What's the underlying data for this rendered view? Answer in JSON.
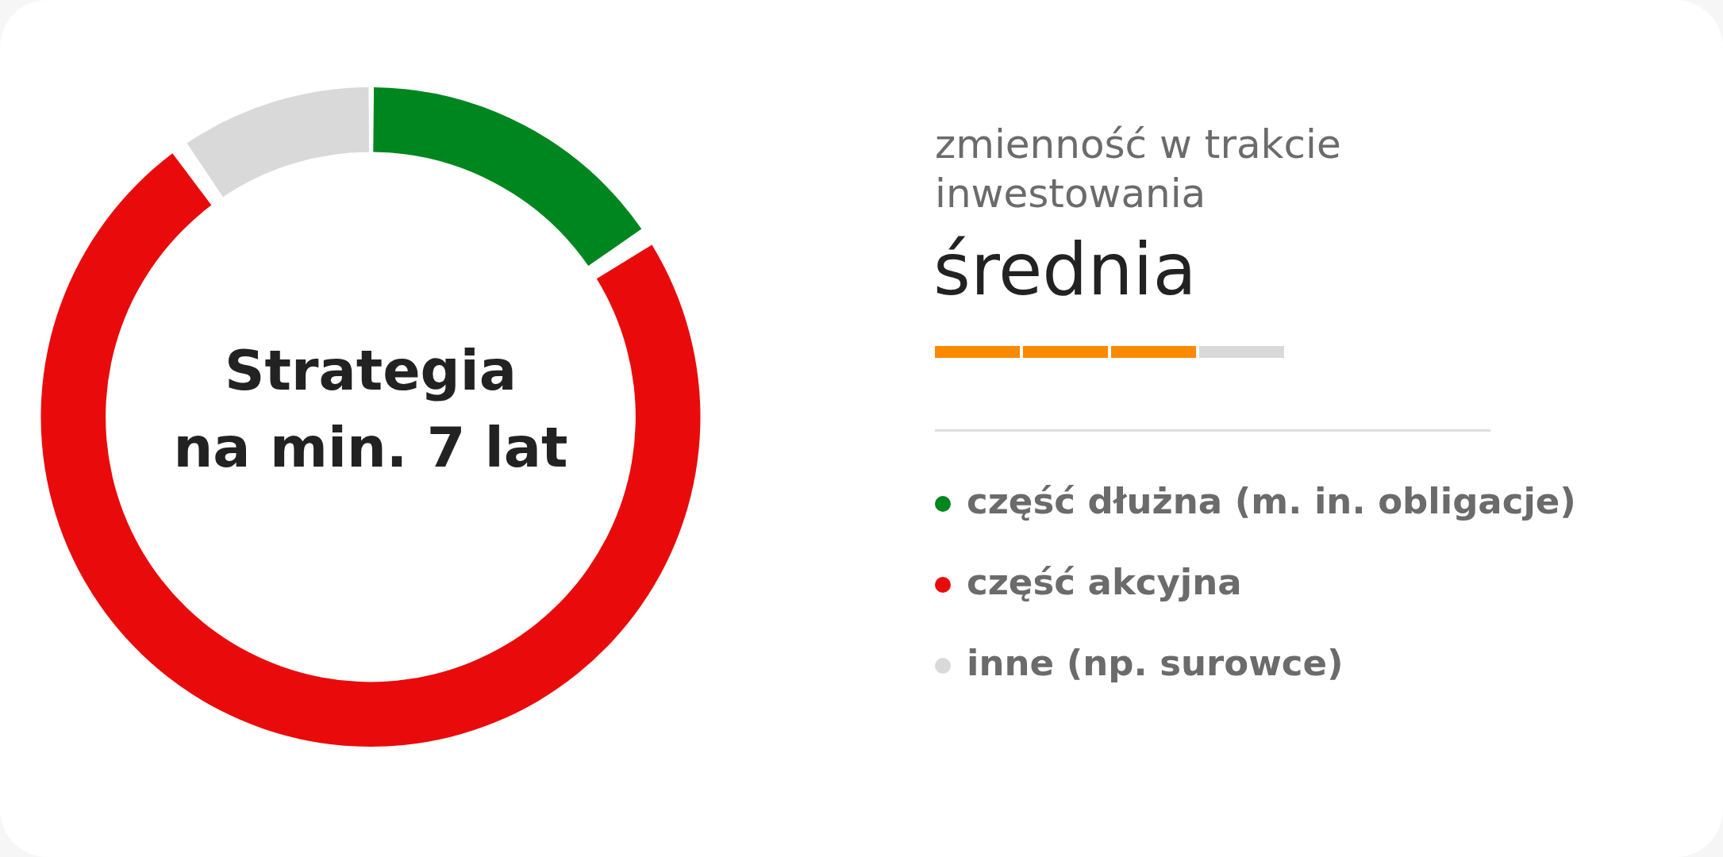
{
  "chart_data": {
    "type": "donut",
    "title": "Strategia\nna min. 7 lat",
    "annotations": [
      "zmienność w trakcie inwestowania",
      "średnia"
    ],
    "categories": [
      "część dłużna (m. in. obligacje)",
      "część akcyjna",
      "inne (np. surowce)"
    ],
    "values": [
      15.5,
      75,
      9.5
    ],
    "colors": [
      "#00861f",
      "#e90b0b",
      "#d9d9d9"
    ],
    "legend": "right"
  }
}
